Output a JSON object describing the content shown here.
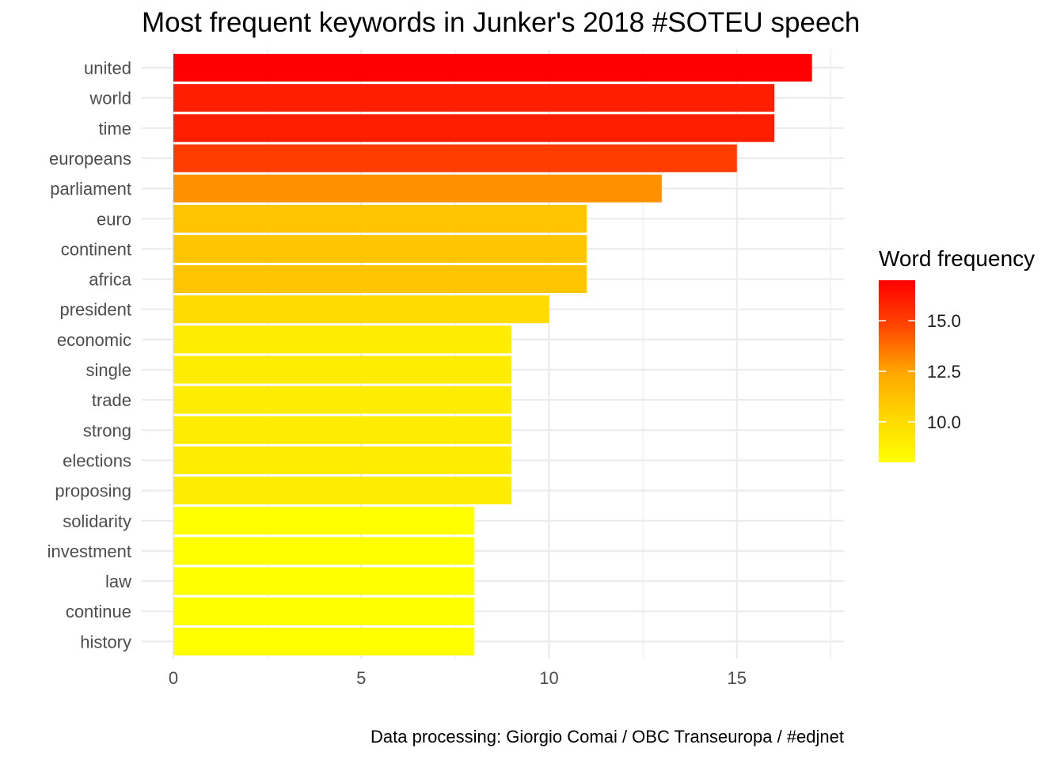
{
  "chart_data": {
    "type": "bar",
    "orientation": "horizontal",
    "title": "Most frequent keywords in Junker's 2018 #SOTEU speech",
    "xlabel": "",
    "ylabel": "",
    "caption": "Data processing:  Giorgio Comai / OBC Transeuropa / #edjnet",
    "categories": [
      "united",
      "world",
      "time",
      "europeans",
      "parliament",
      "euro",
      "continent",
      "africa",
      "president",
      "economic",
      "single",
      "trade",
      "strong",
      "elections",
      "proposing",
      "solidarity",
      "investment",
      "law",
      "continue",
      "history"
    ],
    "values": [
      17,
      16,
      16,
      15,
      13,
      11,
      11,
      11,
      10,
      9,
      9,
      9,
      9,
      9,
      9,
      8,
      8,
      8,
      8,
      8
    ],
    "xlim": [
      0,
      17.5
    ],
    "xticks": [
      0,
      5,
      10,
      15
    ],
    "xtick_labels": [
      "0",
      "5",
      "10",
      "15"
    ],
    "grid": true,
    "legend": {
      "title": "Word frequency",
      "placement": "right",
      "scale_min": 8,
      "scale_max": 17,
      "ticks": [
        15.0,
        12.5,
        10.0
      ],
      "tick_labels": [
        "15.0",
        "12.5",
        "10.0"
      ],
      "colors": [
        "#ffff00",
        "#ffd700",
        "#ffa500",
        "#ff4500",
        "#ff0000"
      ]
    }
  }
}
